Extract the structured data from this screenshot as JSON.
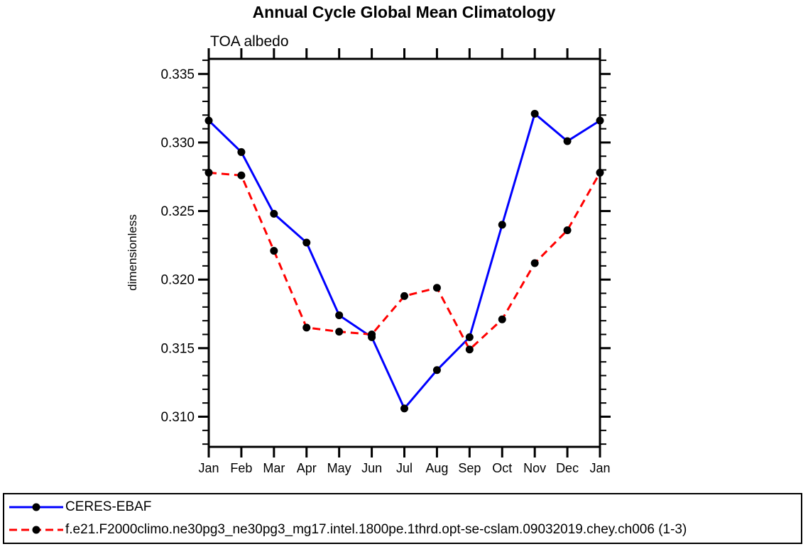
{
  "chart": {
    "title": "Annual Cycle Global Mean Climatology",
    "subtitle": "TOA albedo"
  },
  "chart_data": {
    "type": "line",
    "x_categories": [
      "Jan",
      "Feb",
      "Mar",
      "Apr",
      "May",
      "Jun",
      "Jul",
      "Aug",
      "Sep",
      "Oct",
      "Nov",
      "Dec",
      "Jan"
    ],
    "title": "Annual Cycle Global Mean Climatology",
    "subtitle": "TOA albedo",
    "xlabel": "",
    "ylabel": "dimensionless",
    "ylim": [
      0.3078,
      0.3361
    ],
    "yticks_major": [
      0.31,
      0.315,
      0.32,
      0.325,
      0.33,
      0.335
    ],
    "yminor": {
      "start": 0.308,
      "end": 0.336,
      "step": 0.001
    },
    "grid": false,
    "legend_position": "bottom-box",
    "frame_color": "#000000",
    "marker_color": "#000000",
    "series": [
      {
        "name": "CERES-EBAF",
        "color": "#0000ff",
        "line_style": "solid",
        "values": [
          0.3316,
          0.3293,
          0.3248,
          0.3227,
          0.3174,
          0.3158,
          0.3106,
          0.3134,
          0.3158,
          0.324,
          0.3321,
          0.3301,
          0.3316
        ]
      },
      {
        "name": "f.e21.F2000climo.ne30pg3_ne30pg3_mg17.intel.1800pe.1thrd.opt-se-cslam.09032019.chey.ch006 (1-3)",
        "color": "#ff0000",
        "line_style": "dashed",
        "values": [
          0.3278,
          0.3276,
          0.3221,
          0.3165,
          0.3162,
          0.316,
          0.3188,
          0.3194,
          0.3149,
          0.3171,
          0.3212,
          0.3236,
          0.3278
        ]
      }
    ]
  }
}
